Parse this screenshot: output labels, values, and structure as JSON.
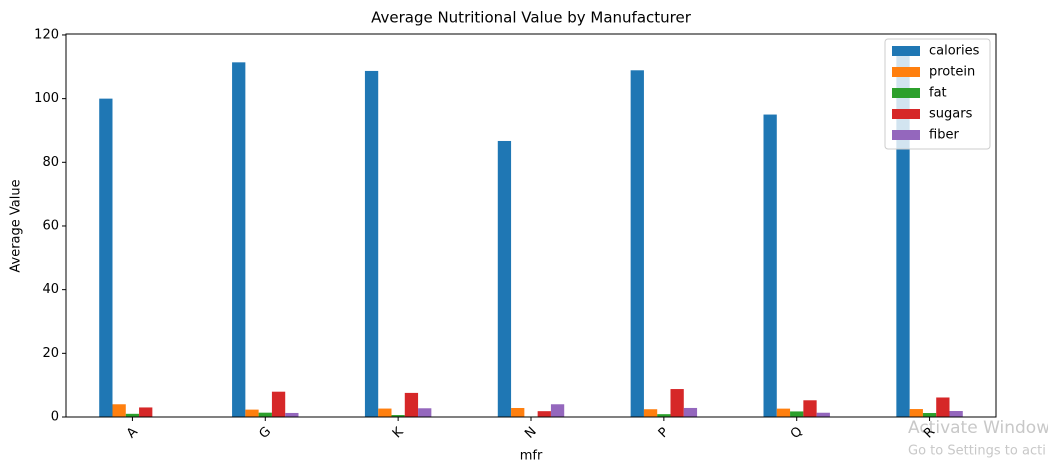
{
  "chart_data": {
    "type": "grouped_bar",
    "title": "Average Nutritional Value by Manufacturer",
    "x_label": "mfr",
    "y_label": "Average Value",
    "categories": [
      "A",
      "G",
      "K",
      "N",
      "P",
      "Q",
      "R"
    ],
    "series": [
      {
        "name": "calories",
        "color": "#1f77b4",
        "values": [
          100,
          111.4,
          108.7,
          86.7,
          108.9,
          95,
          115
        ]
      },
      {
        "name": "protein",
        "color": "#ff7f0e",
        "values": [
          4,
          2.32,
          2.65,
          2.83,
          2.44,
          2.63,
          2.5
        ]
      },
      {
        "name": "fat",
        "color": "#2ca02c",
        "values": [
          1,
          1.36,
          0.61,
          0.17,
          0.89,
          1.75,
          1.25
        ]
      },
      {
        "name": "sugars",
        "color": "#d62728",
        "values": [
          3,
          7.95,
          7.57,
          1.83,
          8.78,
          5.25,
          6.13
        ]
      },
      {
        "name": "fiber",
        "color": "#9467bd",
        "values": [
          0,
          1.27,
          2.74,
          4.0,
          2.84,
          1.34,
          1.88
        ]
      }
    ],
    "ylim": [
      0,
      120.3
    ],
    "yticks": [
      0,
      20,
      40,
      60,
      80,
      100,
      120
    ],
    "legend": "upper right",
    "grid": false,
    "annotations": [
      "Activate Window",
      "Go to Settings to acti"
    ]
  }
}
